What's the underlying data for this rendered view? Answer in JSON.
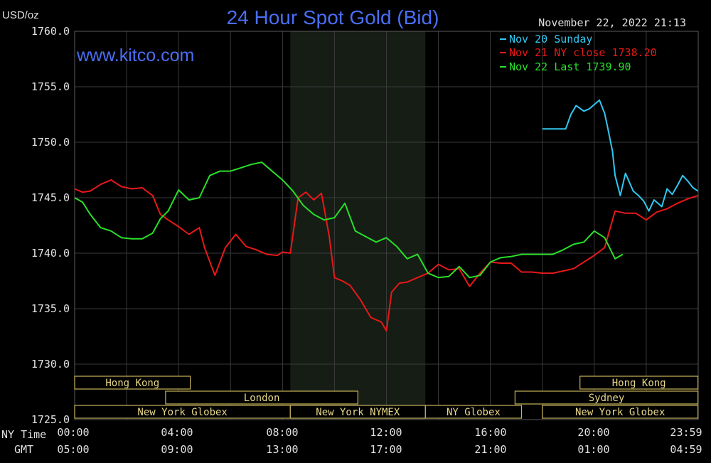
{
  "header": {
    "unit": "USD/oz",
    "title": "24 Hour Spot Gold (Bid)",
    "timestamp": "November 22, 2022 21:13",
    "watermark": "www.kitco.com"
  },
  "axis": {
    "y_labels": [
      "1760.0",
      "1755.0",
      "1750.0",
      "1745.0",
      "1740.0",
      "1735.0",
      "1730.0",
      "1725.0"
    ],
    "x_ny_caption": "NY Time",
    "x_gmt_caption": "GMT",
    "x_ny_labels": [
      "00:00",
      "04:00",
      "08:00",
      "12:00",
      "16:00",
      "20:00",
      "23:59"
    ],
    "x_gmt_labels": [
      "05:00",
      "09:00",
      "13:00",
      "17:00",
      "21:00",
      "01:00",
      "04:59"
    ]
  },
  "sessions": {
    "hong_kong_left": "Hong Kong",
    "london": "London",
    "ny_globex_left": "New York Globex",
    "ny_nymex": "New York NYMEX",
    "ny_globex_mid": "NY Globex",
    "hong_kong_right": "Hong Kong",
    "sydney": "Sydney",
    "ny_globex_right": "New York Globex"
  },
  "colors": {
    "background": "#000000",
    "grid": "#3a3a3a",
    "text": "#e0e0e0",
    "title": "#4a6ef5",
    "highlight": "#151d15",
    "session_border": "#c8b45a",
    "series_cyan": "#30c8f0",
    "series_red": "#e81818",
    "series_green": "#28e028"
  },
  "chart_data": {
    "type": "line",
    "title": "24 Hour Spot Gold (Bid)",
    "ylabel": "USD/oz",
    "xlabel": "NY Time",
    "ylim": [
      1725,
      1760
    ],
    "xlim_hours": [
      0,
      24
    ],
    "legend_position": "top-right",
    "grid": true,
    "series": [
      {
        "name": "Nov 20 Sunday",
        "color": "#30c8f0",
        "x": [
          18.0,
          18.3,
          18.5,
          18.7,
          18.9,
          19.1,
          19.3,
          19.6,
          19.8,
          20.0,
          20.2,
          20.4,
          20.5,
          20.7,
          20.8,
          21.0,
          21.2,
          21.5,
          21.7,
          21.9,
          22.1,
          22.3,
          22.6,
          22.8,
          23.0,
          23.2,
          23.4,
          23.6,
          23.8,
          23.99
        ],
        "values": [
          1751.2,
          1751.2,
          1751.2,
          1751.2,
          1751.2,
          1752.5,
          1753.3,
          1752.8,
          1753.0,
          1753.4,
          1753.8,
          1752.6,
          1751.5,
          1749.2,
          1747.0,
          1745.2,
          1747.2,
          1745.6,
          1745.2,
          1744.7,
          1743.8,
          1744.8,
          1744.2,
          1745.8,
          1745.3,
          1746.1,
          1747.0,
          1746.5,
          1745.9,
          1745.6
        ]
      },
      {
        "name": "Nov 21 NY close 1738.20",
        "color": "#e81818",
        "x": [
          0.0,
          0.3,
          0.6,
          1.0,
          1.4,
          1.8,
          2.2,
          2.6,
          3.0,
          3.3,
          3.6,
          4.0,
          4.4,
          4.8,
          5.0,
          5.4,
          5.8,
          6.2,
          6.6,
          7.0,
          7.4,
          7.8,
          8.0,
          8.3,
          8.6,
          8.9,
          9.2,
          9.5,
          9.8,
          10.0,
          10.3,
          10.6,
          11.0,
          11.4,
          11.8,
          12.0,
          12.2,
          12.5,
          12.8,
          13.2,
          13.6,
          14.0,
          14.4,
          14.8,
          15.2,
          15.6,
          16.0,
          16.4,
          16.8,
          17.2,
          17.6,
          18.0,
          18.4,
          18.8,
          19.2,
          19.6,
          20.0,
          20.4,
          20.8,
          21.2,
          21.6,
          22.0,
          22.4,
          22.8,
          23.2,
          23.6,
          23.99
        ],
        "values": [
          1745.8,
          1745.5,
          1745.6,
          1746.2,
          1746.6,
          1746.0,
          1745.8,
          1745.9,
          1745.2,
          1743.5,
          1743.0,
          1742.4,
          1741.7,
          1742.3,
          1740.5,
          1738.0,
          1740.5,
          1741.7,
          1740.6,
          1740.3,
          1739.9,
          1739.8,
          1740.1,
          1740.0,
          1745.0,
          1745.5,
          1744.8,
          1745.4,
          1741.5,
          1737.8,
          1737.5,
          1737.1,
          1735.8,
          1734.2,
          1733.8,
          1733.0,
          1736.5,
          1737.3,
          1737.4,
          1737.8,
          1738.2,
          1739.0,
          1738.5,
          1738.6,
          1737.0,
          1738.2,
          1739.2,
          1739.1,
          1739.1,
          1738.3,
          1738.3,
          1738.2,
          1738.2,
          1738.4,
          1738.6,
          1739.2,
          1739.8,
          1740.5,
          1743.8,
          1743.6,
          1743.6,
          1743.0,
          1743.7,
          1744.0,
          1744.5,
          1744.9,
          1745.2
        ]
      },
      {
        "name": "Nov 22 Last 1739.90",
        "color": "#28e028",
        "x": [
          0.0,
          0.3,
          0.6,
          1.0,
          1.4,
          1.8,
          2.2,
          2.6,
          3.0,
          3.3,
          3.6,
          4.0,
          4.4,
          4.8,
          5.2,
          5.6,
          6.0,
          6.4,
          6.8,
          7.2,
          7.6,
          8.0,
          8.4,
          8.8,
          9.2,
          9.6,
          10.0,
          10.4,
          10.8,
          11.2,
          11.6,
          12.0,
          12.4,
          12.8,
          13.2,
          13.6,
          14.0,
          14.4,
          14.8,
          15.2,
          15.6,
          16.0,
          16.4,
          16.8,
          17.2,
          17.6,
          18.0,
          18.4,
          18.8,
          19.2,
          19.6,
          20.0,
          20.4,
          20.8,
          21.1
        ],
        "values": [
          1745.0,
          1744.6,
          1743.5,
          1742.3,
          1742.0,
          1741.4,
          1741.3,
          1741.3,
          1741.8,
          1743.1,
          1743.8,
          1745.7,
          1744.8,
          1745.0,
          1747.0,
          1747.4,
          1747.4,
          1747.7,
          1748.0,
          1748.2,
          1747.4,
          1746.6,
          1745.6,
          1744.3,
          1743.5,
          1743.0,
          1743.2,
          1744.5,
          1742.0,
          1741.5,
          1741.0,
          1741.4,
          1740.6,
          1739.5,
          1739.9,
          1738.2,
          1737.8,
          1737.9,
          1738.8,
          1737.8,
          1738.0,
          1739.2,
          1739.6,
          1739.7,
          1739.9,
          1739.9,
          1739.9,
          1739.9,
          1740.3,
          1740.8,
          1741.0,
          1742.0,
          1741.4,
          1739.5,
          1739.9
        ]
      }
    ]
  }
}
